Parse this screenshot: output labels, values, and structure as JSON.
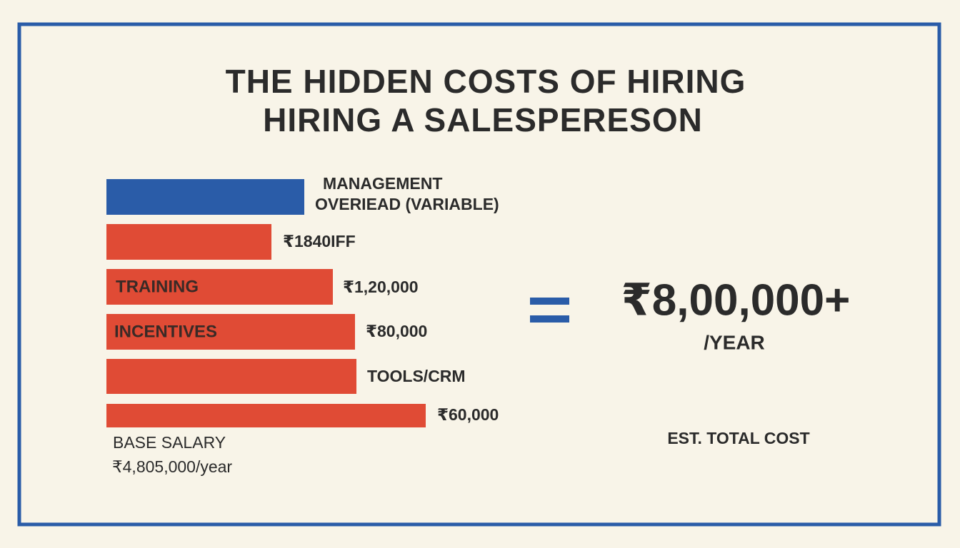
{
  "title": [
    "THE HIDDEN COSTS OF HIRING",
    "HIRING A SALESPERESON"
  ],
  "bars": [
    {
      "side_label": [
        "MANAGEMENT",
        "OVERIEAD (VARIABLE)"
      ]
    },
    {
      "side_label": "₹1840IFF"
    },
    {
      "inner_label": "TRAINING",
      "side_label": "₹1,20,000"
    },
    {
      "inner_label": "INCENTIVES",
      "side_label": "₹80,000"
    },
    {
      "side_label": "TOOLS/CRM"
    },
    {
      "side_label": "₹60,000"
    }
  ],
  "footnote": [
    "BASE SALARY",
    "₹4,805,000/year"
  ],
  "total": {
    "amount": "₹8,00,000+",
    "period": "/YEAR",
    "caption": "EST. TOTAL COST"
  }
}
